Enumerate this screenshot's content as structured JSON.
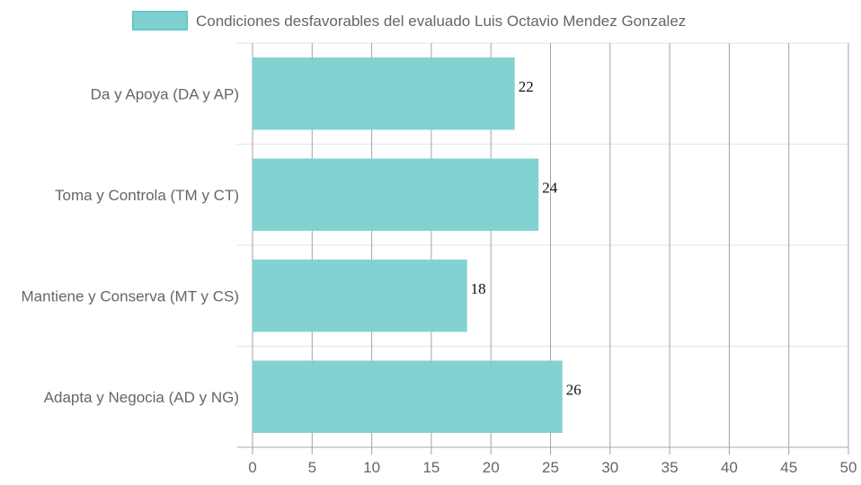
{
  "chart_data": {
    "type": "bar",
    "orientation": "horizontal",
    "categories": [
      "Da y Apoya (DA y AP)",
      "Toma y Controla (TM y CT)",
      "Mantiene y Conserva (MT y CS)",
      "Adapta y Negocia (AD y NG)"
    ],
    "series": [
      {
        "name": "Condiciones desfavorables del evaluado Luis Octavio Mendez Gonzalez",
        "values": [
          22,
          24,
          18,
          26
        ],
        "color": "#7fd1d1",
        "border_color": "#66c6c6"
      }
    ],
    "xlim": [
      0,
      50
    ],
    "x_ticks": [
      0,
      5,
      10,
      15,
      20,
      25,
      30,
      35,
      40,
      45,
      50
    ],
    "grid": true,
    "legend_position": "top",
    "data_labels": true,
    "title": "",
    "xlabel": "",
    "ylabel": ""
  }
}
